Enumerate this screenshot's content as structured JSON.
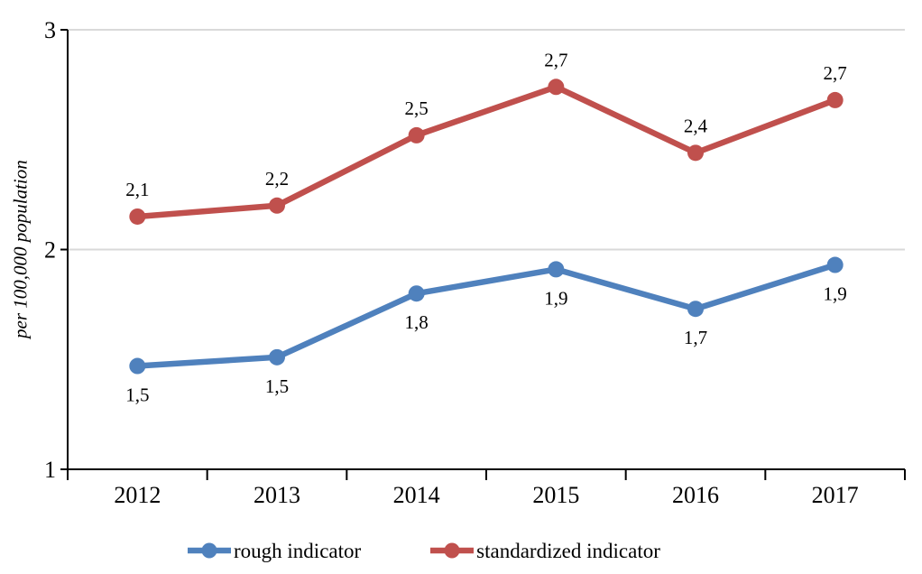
{
  "chart_data": {
    "type": "line",
    "title": "",
    "xlabel": "",
    "ylabel": "per 100,000 population",
    "ylim": [
      1,
      3
    ],
    "yticks": [
      "1",
      "2",
      "3"
    ],
    "ytick_values": [
      1,
      2,
      3
    ],
    "grid": "horizontal gridlines at y=2 and y=3, axis line at y=1",
    "legend_position": "bottom",
    "decimal_separator": ",",
    "categories": [
      "2012",
      "2013",
      "2014",
      "2015",
      "2016",
      "2017"
    ],
    "series": [
      {
        "name": "rough indicator",
        "color": "#4F81BD",
        "values": [
          1.47,
          1.51,
          1.8,
          1.91,
          1.73,
          1.93
        ],
        "labels": [
          "1,5",
          "1,5",
          "1,8",
          "1,9",
          "1,7",
          "1,9"
        ],
        "label_position": "below"
      },
      {
        "name": "standardized indicator",
        "color": "#C0504D",
        "values": [
          2.15,
          2.2,
          2.52,
          2.74,
          2.44,
          2.68
        ],
        "labels": [
          "2,1",
          "2,2",
          "2,5",
          "2,7",
          "2,4",
          "2,7"
        ],
        "label_position": "above"
      }
    ],
    "axis_color": "#000000",
    "gridline_color": "#D9D9D9",
    "text_color": "#000000"
  }
}
